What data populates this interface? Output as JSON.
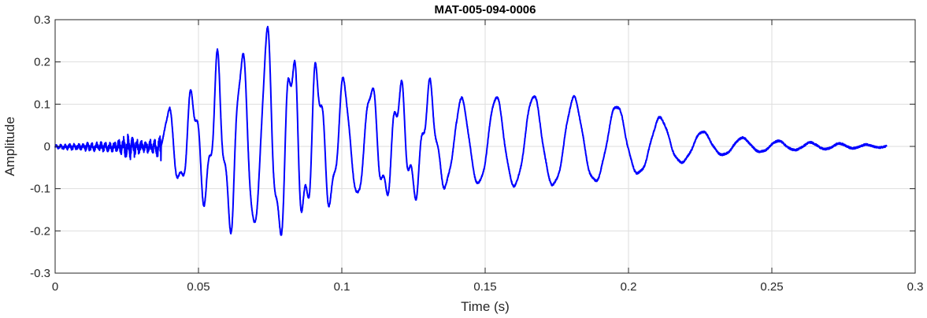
{
  "chart_data": {
    "type": "line",
    "title": "MAT-005-094-0006",
    "xlabel": "Time (s)",
    "ylabel": "Amplitude",
    "xlim": [
      0,
      0.3
    ],
    "ylim": [
      -0.3,
      0.3
    ],
    "xticks": [
      0,
      0.05,
      0.1,
      0.15,
      0.2,
      0.25,
      0.3
    ],
    "xtick_labels": [
      "0",
      "0.05",
      "0.1",
      "0.15",
      "0.2",
      "0.25",
      "0.3"
    ],
    "yticks": [
      -0.3,
      -0.2,
      -0.1,
      0,
      0.1,
      0.2,
      0.3
    ],
    "ytick_labels": [
      "-0.3",
      "-0.2",
      "-0.1",
      "0",
      "0.1",
      "0.2",
      "0.3"
    ],
    "grid": true,
    "legend": "none",
    "line_color": "#0000ff",
    "series": [
      {
        "x": [
          0,
          0.01,
          0.02,
          0.026,
          0.03,
          0.035,
          0.0375,
          0.04,
          0.045,
          0.05,
          0.055,
          0.06,
          0.062,
          0.065,
          0.07,
          0.075,
          0.077,
          0.08,
          0.085,
          0.09,
          0.095,
          0.1,
          0.11,
          0.12,
          0.13,
          0.14,
          0.15,
          0.16,
          0.17,
          0.18,
          0.19,
          0.2,
          0.21,
          0.22,
          0.23,
          0.24,
          0.25,
          0.26,
          0.27,
          0.28,
          0.29
        ],
        "envelope": [
          0.004,
          0.008,
          0.01,
          0.025,
          0.012,
          0.015,
          0.04,
          0.1,
          0.11,
          0.13,
          0.16,
          0.2,
          0.24,
          0.22,
          0.24,
          0.26,
          0.27,
          0.23,
          0.2,
          0.18,
          0.16,
          0.15,
          0.14,
          0.13,
          0.13,
          0.11,
          0.115,
          0.12,
          0.12,
          0.115,
          0.105,
          0.09,
          0.07,
          0.045,
          0.028,
          0.02,
          0.014,
          0.01,
          0.008,
          0.005,
          0.003
        ]
      }
    ]
  }
}
